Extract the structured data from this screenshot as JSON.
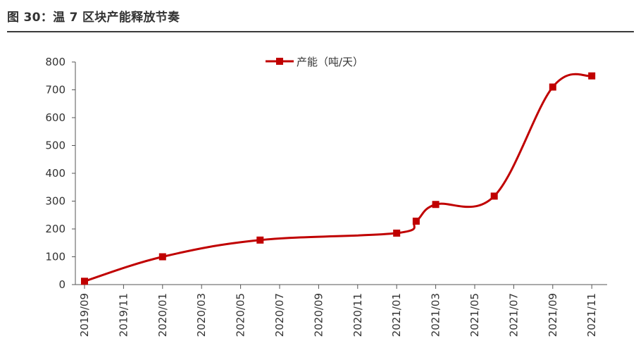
{
  "figure": {
    "title": "图 30：温 7 区块产能释放节奏"
  },
  "chart_data": {
    "type": "line",
    "title": "",
    "xlabel": "",
    "ylabel": "",
    "ylim": [
      0,
      800
    ],
    "y_ticks": [
      0,
      100,
      200,
      300,
      400,
      500,
      600,
      700,
      800
    ],
    "x_ticks": [
      "2019/09",
      "2019/11",
      "2020/01",
      "2020/03",
      "2020/05",
      "2020/07",
      "2020/09",
      "2020/11",
      "2021/01",
      "2021/03",
      "2021/05",
      "2021/07",
      "2021/09",
      "2021/11"
    ],
    "grid": false,
    "legend": "top-center",
    "series": [
      {
        "name": "产能（吨/天）",
        "color": "#c00000",
        "marker": "square",
        "points": [
          {
            "x": "2019/09",
            "y": 12
          },
          {
            "x": "2020/01",
            "y": 100
          },
          {
            "x": "2020/06",
            "y": 160
          },
          {
            "x": "2021/01",
            "y": 185
          },
          {
            "x": "2021/02",
            "y": 228
          },
          {
            "x": "2021/03",
            "y": 288
          },
          {
            "x": "2021/06",
            "y": 318
          },
          {
            "x": "2021/09",
            "y": 710
          },
          {
            "x": "2021/11",
            "y": 750
          }
        ]
      }
    ]
  }
}
